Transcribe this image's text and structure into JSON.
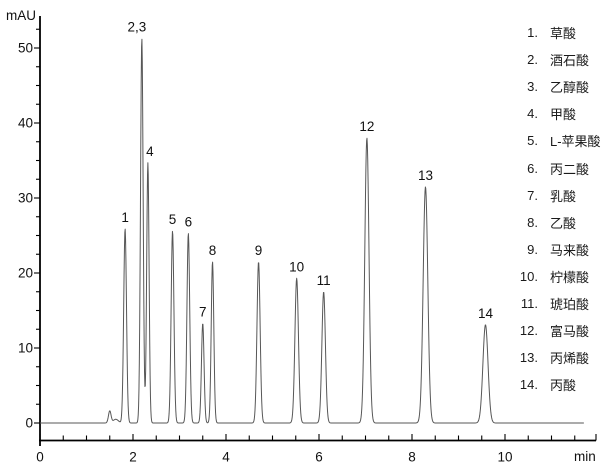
{
  "figure": {
    "background_color": "#ffffff",
    "axis_color": "#000000",
    "trace_color": "#575757",
    "text_color": "#111111"
  },
  "chart_data": {
    "type": "line",
    "kind": "hplc-chromatogram",
    "title": "",
    "x_axis": {
      "unit_label": "min",
      "min": 0,
      "max": 11.95,
      "major_ticks": [
        0,
        2,
        4,
        6,
        8,
        10
      ],
      "minor_tick_step": 0.5,
      "grid": false
    },
    "y_axis": {
      "unit_label": "mAU",
      "min": -2.3,
      "max": 54.5,
      "major_ticks": [
        0,
        10,
        20,
        30,
        40,
        50
      ],
      "minor_tick_step": 2.5,
      "minor_tick_max": 52.5,
      "grid": false
    },
    "baseline_mAU": 0,
    "trace_start_min": 0,
    "trace_end_min": 11.7,
    "artifacts": [
      {
        "rt_min": 1.5,
        "height_mAU": 1.6,
        "sigma_min": 0.028
      },
      {
        "rt_min": 1.63,
        "height_mAU": 0.5,
        "sigma_min": 0.055
      }
    ],
    "peaks": [
      {
        "label": "1",
        "rt_min": 1.83,
        "height_mAU": 25.9,
        "sigma_min": 0.03,
        "label_dx": 0
      },
      {
        "label": "2,3",
        "rt_min": 2.19,
        "height_mAU": 51.3,
        "sigma_min": 0.028,
        "label_dx": -5
      },
      {
        "label": "4",
        "rt_min": 2.32,
        "height_mAU": 34.7,
        "sigma_min": 0.026,
        "label_dx": 2
      },
      {
        "label": "5",
        "rt_min": 2.85,
        "height_mAU": 25.6,
        "sigma_min": 0.03,
        "label_dx": 0
      },
      {
        "label": "6",
        "rt_min": 3.19,
        "height_mAU": 25.3,
        "sigma_min": 0.03,
        "label_dx": 0
      },
      {
        "label": "7",
        "rt_min": 3.5,
        "height_mAU": 13.3,
        "sigma_min": 0.028,
        "label_dx": 0
      },
      {
        "label": "8",
        "rt_min": 3.71,
        "height_mAU": 21.5,
        "sigma_min": 0.028,
        "label_dx": 0
      },
      {
        "label": "9",
        "rt_min": 4.7,
        "height_mAU": 21.5,
        "sigma_min": 0.034,
        "label_dx": 0
      },
      {
        "label": "10",
        "rt_min": 5.52,
        "height_mAU": 19.3,
        "sigma_min": 0.038,
        "label_dx": 0
      },
      {
        "label": "11",
        "rt_min": 6.1,
        "height_mAU": 17.5,
        "sigma_min": 0.038,
        "label_dx": 0
      },
      {
        "label": "12",
        "rt_min": 7.03,
        "height_mAU": 38.0,
        "sigma_min": 0.045,
        "label_dx": 0
      },
      {
        "label": "13",
        "rt_min": 8.29,
        "height_mAU": 31.5,
        "sigma_min": 0.05,
        "label_dx": 0
      },
      {
        "label": "14",
        "rt_min": 9.58,
        "height_mAU": 13.1,
        "sigma_min": 0.055,
        "label_dx": 0
      }
    ],
    "legend": [
      {
        "number": "1.",
        "name": "草酸"
      },
      {
        "number": "2.",
        "name": "酒石酸"
      },
      {
        "number": "3.",
        "name": "乙醇酸"
      },
      {
        "number": "4.",
        "name": "甲酸"
      },
      {
        "number": "5.",
        "name": "L-苹果酸"
      },
      {
        "number": "6.",
        "name": "丙二酸"
      },
      {
        "number": "7.",
        "name": "乳酸"
      },
      {
        "number": "8.",
        "name": "乙酸"
      },
      {
        "number": "9.",
        "name": "马来酸"
      },
      {
        "number": "10.",
        "name": "柠檬酸"
      },
      {
        "number": "11.",
        "name": "琥珀酸"
      },
      {
        "number": "12.",
        "name": "富马酸"
      },
      {
        "number": "13.",
        "name": "丙烯酸"
      },
      {
        "number": "14.",
        "name": "丙酸"
      }
    ]
  }
}
